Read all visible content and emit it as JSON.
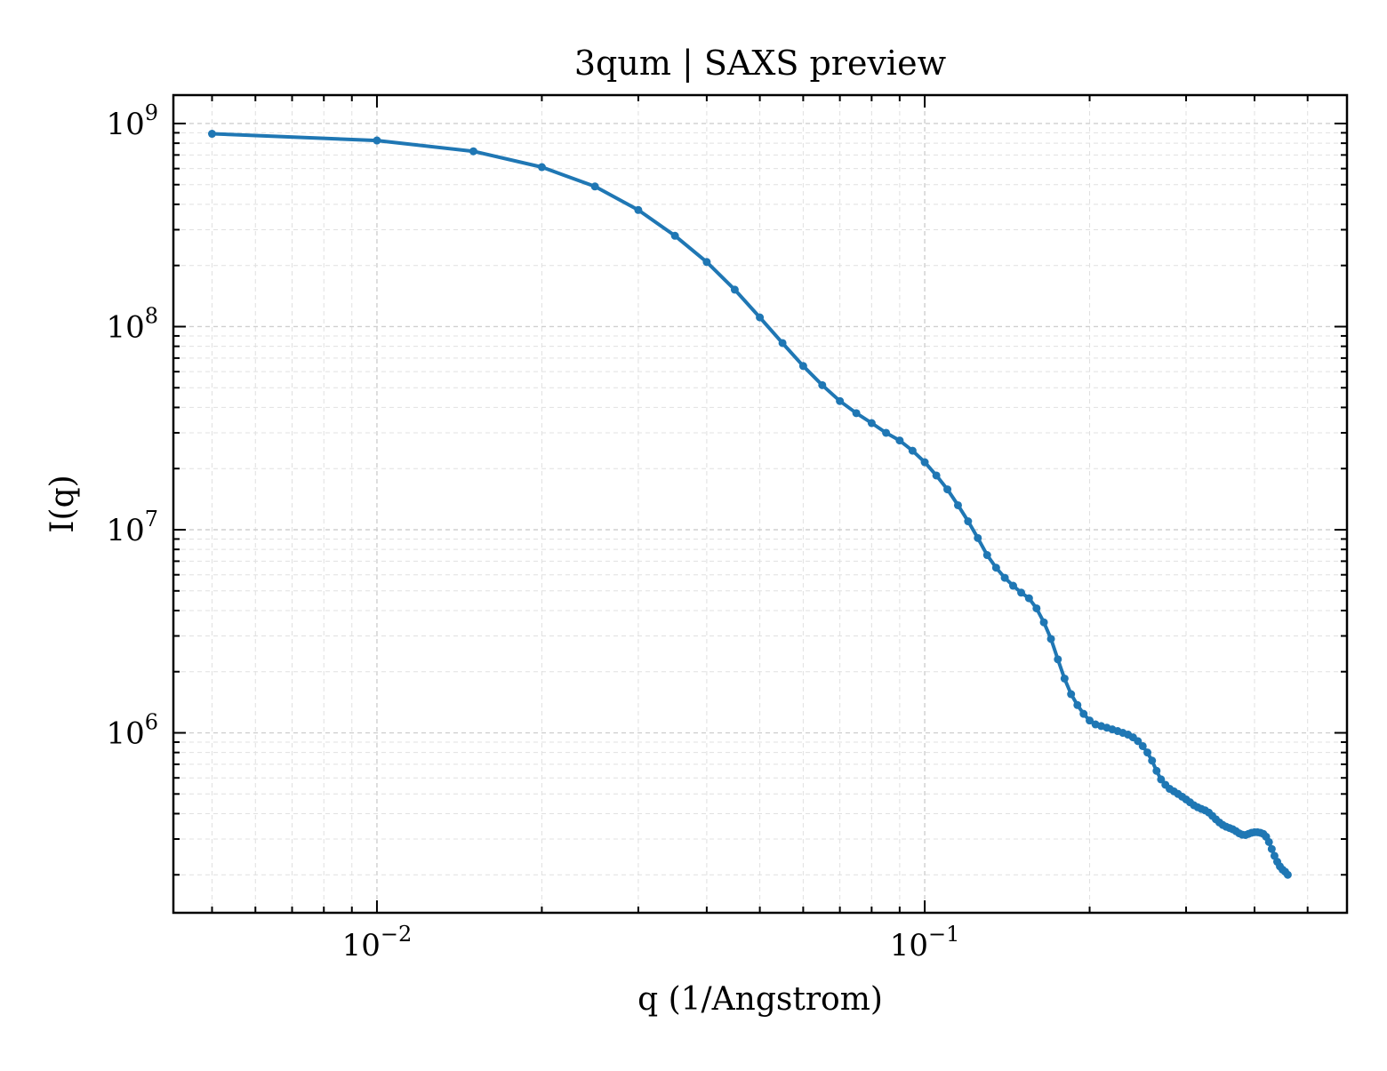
{
  "chart_data": {
    "type": "line",
    "title": "3qum | SAXS preview",
    "xlabel": "q (1/Angstrom)",
    "ylabel": "I(q)",
    "x_scale": "log",
    "y_scale": "log",
    "xlim": [
      0.00425,
      0.59
    ],
    "ylim": [
      130000,
      1380000000
    ],
    "grid": true,
    "legend": "none",
    "x_ticks": [
      {
        "base": "10",
        "exp": "−2",
        "value": 0.01
      },
      {
        "base": "10",
        "exp": "−1",
        "value": 0.1
      }
    ],
    "y_ticks": [
      {
        "base": "10",
        "exp": "6",
        "value": 1000000
      },
      {
        "base": "10",
        "exp": "7",
        "value": 10000000
      },
      {
        "base": "10",
        "exp": "8",
        "value": 100000000
      },
      {
        "base": "10",
        "exp": "9",
        "value": 1000000000
      }
    ],
    "series": [
      {
        "color": "#1f77b4",
        "marker": "circle",
        "points": [
          [
            0.005,
            890000000.0
          ],
          [
            0.01,
            825000000.0
          ],
          [
            0.015,
            730000000.0
          ],
          [
            0.02,
            610000000.0
          ],
          [
            0.025,
            490000000.0
          ],
          [
            0.03,
            375000000.0
          ],
          [
            0.035,
            280000000.0
          ],
          [
            0.04,
            208000000.0
          ],
          [
            0.045,
            152000000.0
          ],
          [
            0.05,
            111000000.0
          ],
          [
            0.055,
            83000000.0
          ],
          [
            0.06,
            64000000.0
          ],
          [
            0.065,
            51500000.0
          ],
          [
            0.07,
            43000000.0
          ],
          [
            0.075,
            37500000.0
          ],
          [
            0.08,
            33500000.0
          ],
          [
            0.085,
            30000000.0
          ],
          [
            0.09,
            27500000.0
          ],
          [
            0.095,
            24500000.0
          ],
          [
            0.1,
            21500000.0
          ],
          [
            0.105,
            18500000.0
          ],
          [
            0.11,
            15800000.0
          ],
          [
            0.115,
            13200000.0
          ],
          [
            0.12,
            11000000.0
          ],
          [
            0.125,
            9100000.0
          ],
          [
            0.13,
            7500000.0
          ],
          [
            0.135,
            6500000.0
          ],
          [
            0.14,
            5800000.0
          ],
          [
            0.145,
            5300000.0
          ],
          [
            0.15,
            4900000.0
          ],
          [
            0.155,
            4600000.0
          ],
          [
            0.16,
            4100000.0
          ],
          [
            0.165,
            3500000.0
          ],
          [
            0.17,
            2900000.0
          ],
          [
            0.175,
            2300000.0
          ],
          [
            0.18,
            1850000.0
          ],
          [
            0.185,
            1550000.0
          ],
          [
            0.19,
            1370000.0
          ],
          [
            0.195,
            1240000.0
          ],
          [
            0.2,
            1150000.0
          ],
          [
            0.205,
            1100000.0
          ],
          [
            0.21,
            1080000.0
          ],
          [
            0.215,
            1060000.0
          ],
          [
            0.22,
            1040000.0
          ],
          [
            0.225,
            1020000.0
          ],
          [
            0.23,
            1000000.0
          ],
          [
            0.235,
            980000.0
          ],
          [
            0.24,
            950000.0
          ],
          [
            0.245,
            910000.0
          ],
          [
            0.25,
            860000.0
          ],
          [
            0.255,
            800000.0
          ],
          [
            0.26,
            730000.0
          ],
          [
            0.265,
            650000.0
          ],
          [
            0.27,
            590000.0
          ],
          [
            0.275,
            555000.0
          ],
          [
            0.28,
            530000.0
          ],
          [
            0.285,
            515000.0
          ],
          [
            0.29,
            500000.0
          ],
          [
            0.295,
            485000.0
          ],
          [
            0.3,
            470000.0
          ],
          [
            0.305,
            455000.0
          ],
          [
            0.31,
            440000.0
          ],
          [
            0.315,
            430000.0
          ],
          [
            0.32,
            422000.0
          ],
          [
            0.325,
            415000.0
          ],
          [
            0.33,
            405000.0
          ],
          [
            0.335,
            390000.0
          ],
          [
            0.34,
            375000.0
          ],
          [
            0.345,
            362000.0
          ],
          [
            0.35,
            352000.0
          ],
          [
            0.355,
            345000.0
          ],
          [
            0.36,
            340000.0
          ],
          [
            0.365,
            335000.0
          ],
          [
            0.37,
            328000.0
          ],
          [
            0.375,
            320000.0
          ],
          [
            0.38,
            315000.0
          ],
          [
            0.385,
            314000.0
          ],
          [
            0.39,
            318000.0
          ],
          [
            0.395,
            322000.0
          ],
          [
            0.4,
            324000.0
          ],
          [
            0.405,
            324000.0
          ],
          [
            0.41,
            322000.0
          ],
          [
            0.415,
            318000.0
          ],
          [
            0.42,
            308000.0
          ],
          [
            0.425,
            290000.0
          ],
          [
            0.43,
            268000.0
          ],
          [
            0.435,
            248000.0
          ],
          [
            0.44,
            232000.0
          ],
          [
            0.445,
            220000.0
          ],
          [
            0.45,
            212000.0
          ],
          [
            0.455,
            207000.0
          ],
          [
            0.46,
            200000.0
          ]
        ]
      }
    ]
  }
}
